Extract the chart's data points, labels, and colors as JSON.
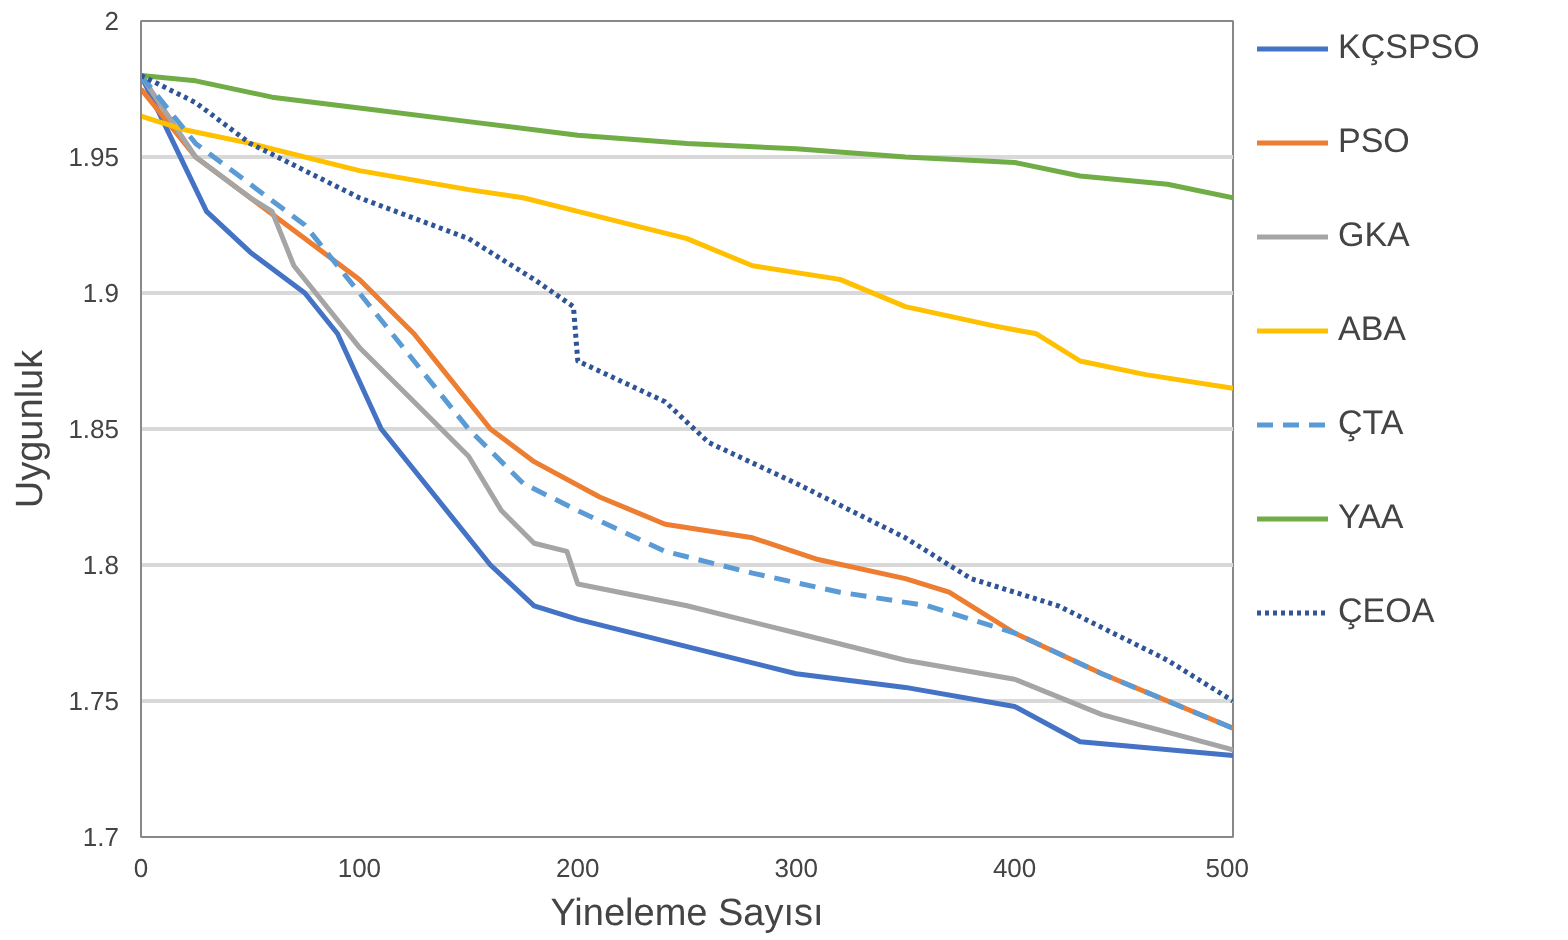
{
  "chart_data": {
    "type": "line",
    "xlabel": "Yineleme Sayısı",
    "ylabel": "Uygunluk",
    "xlim": [
      0,
      500
    ],
    "ylim": [
      1.7,
      2
    ],
    "xticks": [
      0,
      100,
      200,
      300,
      400,
      500
    ],
    "yticks": [
      1.7,
      1.75,
      1.8,
      1.85,
      1.9,
      1.95,
      2
    ],
    "grid": "y",
    "legend": "right",
    "marker": "none",
    "series": [
      {
        "name": "KÇSPSO",
        "color": "#4472c4",
        "line_style": "solid",
        "x": [
          0,
          30,
          50,
          75,
          90,
          110,
          140,
          160,
          180,
          200,
          250,
          300,
          350,
          400,
          430,
          500
        ],
        "values": [
          1.98,
          1.93,
          1.915,
          1.9,
          1.885,
          1.85,
          1.82,
          1.8,
          1.785,
          1.78,
          1.77,
          1.76,
          1.755,
          1.748,
          1.735,
          1.73
        ]
      },
      {
        "name": "PSO",
        "color": "#ed7d31",
        "line_style": "solid",
        "x": [
          0,
          25,
          50,
          75,
          100,
          125,
          140,
          160,
          180,
          210,
          240,
          280,
          310,
          350,
          370,
          400,
          440,
          500
        ],
        "values": [
          1.975,
          1.95,
          1.935,
          1.92,
          1.905,
          1.885,
          1.87,
          1.85,
          1.838,
          1.825,
          1.815,
          1.81,
          1.802,
          1.795,
          1.79,
          1.775,
          1.76,
          1.74
        ]
      },
      {
        "name": "GKA",
        "color": "#a5a5a5",
        "line_style": "solid",
        "x": [
          0,
          25,
          50,
          60,
          70,
          100,
          125,
          150,
          165,
          180,
          195,
          200,
          250,
          300,
          350,
          400,
          440,
          500
        ],
        "values": [
          1.98,
          1.95,
          1.935,
          1.93,
          1.91,
          1.88,
          1.86,
          1.84,
          1.82,
          1.808,
          1.805,
          1.793,
          1.785,
          1.775,
          1.765,
          1.758,
          1.745,
          1.732
        ]
      },
      {
        "name": "ABA",
        "color": "#ffc000",
        "line_style": "solid",
        "x": [
          0,
          20,
          50,
          100,
          150,
          175,
          200,
          250,
          280,
          320,
          350,
          390,
          410,
          430,
          460,
          500
        ],
        "values": [
          1.965,
          1.96,
          1.955,
          1.945,
          1.938,
          1.935,
          1.93,
          1.92,
          1.91,
          1.905,
          1.895,
          1.888,
          1.885,
          1.875,
          1.87,
          1.865
        ]
      },
      {
        "name": "ÇTA",
        "color": "#5b9bd5",
        "line_style": "dashed",
        "x": [
          0,
          25,
          50,
          75,
          100,
          125,
          150,
          175,
          200,
          240,
          280,
          320,
          360,
          400,
          440,
          500
        ],
        "values": [
          1.98,
          1.955,
          1.94,
          1.925,
          1.9,
          1.875,
          1.85,
          1.83,
          1.82,
          1.805,
          1.797,
          1.79,
          1.785,
          1.775,
          1.76,
          1.74
        ]
      },
      {
        "name": "YAA",
        "color": "#70ad47",
        "line_style": "solid",
        "x": [
          0,
          25,
          60,
          100,
          150,
          200,
          250,
          300,
          350,
          400,
          430,
          470,
          500
        ],
        "values": [
          1.98,
          1.978,
          1.972,
          1.968,
          1.963,
          1.958,
          1.955,
          1.953,
          1.95,
          1.948,
          1.943,
          1.94,
          1.935
        ]
      },
      {
        "name": "ÇEOA",
        "color": "#2f5597",
        "line_style": "dotted",
        "x": [
          0,
          25,
          50,
          75,
          100,
          150,
          180,
          198,
          200,
          240,
          260,
          300,
          350,
          380,
          420,
          470,
          500
        ],
        "values": [
          1.98,
          1.97,
          1.955,
          1.945,
          1.935,
          1.92,
          1.905,
          1.895,
          1.875,
          1.86,
          1.845,
          1.83,
          1.81,
          1.795,
          1.785,
          1.765,
          1.75
        ]
      }
    ]
  }
}
